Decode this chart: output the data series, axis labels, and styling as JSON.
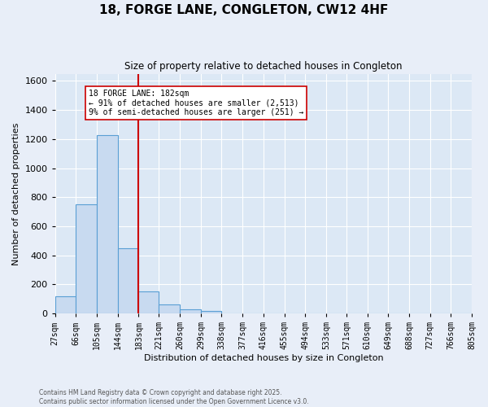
{
  "title": "18, FORGE LANE, CONGLETON, CW12 4HF",
  "subtitle": "Size of property relative to detached houses in Congleton",
  "xlabel": "Distribution of detached houses by size in Congleton",
  "ylabel": "Number of detached properties",
  "bin_edges": [
    27,
    66,
    105,
    144,
    183,
    221,
    260,
    299,
    338,
    377,
    416,
    455,
    494,
    533,
    571,
    610,
    649,
    688,
    727,
    766,
    805
  ],
  "bar_heights": [
    120,
    750,
    1230,
    450,
    150,
    60,
    30,
    15,
    0,
    0,
    0,
    0,
    0,
    0,
    0,
    0,
    0,
    0,
    0,
    0
  ],
  "bar_color": "#c8daf0",
  "bar_edge_color": "#5a9fd4",
  "vline_x": 183,
  "vline_color": "#cc0000",
  "annotation_text": "18 FORGE LANE: 182sqm\n← 91% of detached houses are smaller (2,513)\n9% of semi-detached houses are larger (251) →",
  "annotation_box_color": "#ffffff",
  "annotation_box_edge": "#cc0000",
  "ylim": [
    0,
    1650
  ],
  "yticks": [
    0,
    200,
    400,
    600,
    800,
    1000,
    1200,
    1400,
    1600
  ],
  "background_color": "#dce8f5",
  "grid_color": "#ffffff",
  "fig_background": "#e8eef8",
  "footer_line1": "Contains HM Land Registry data © Crown copyright and database right 2025.",
  "footer_line2": "Contains public sector information licensed under the Open Government Licence v3.0."
}
